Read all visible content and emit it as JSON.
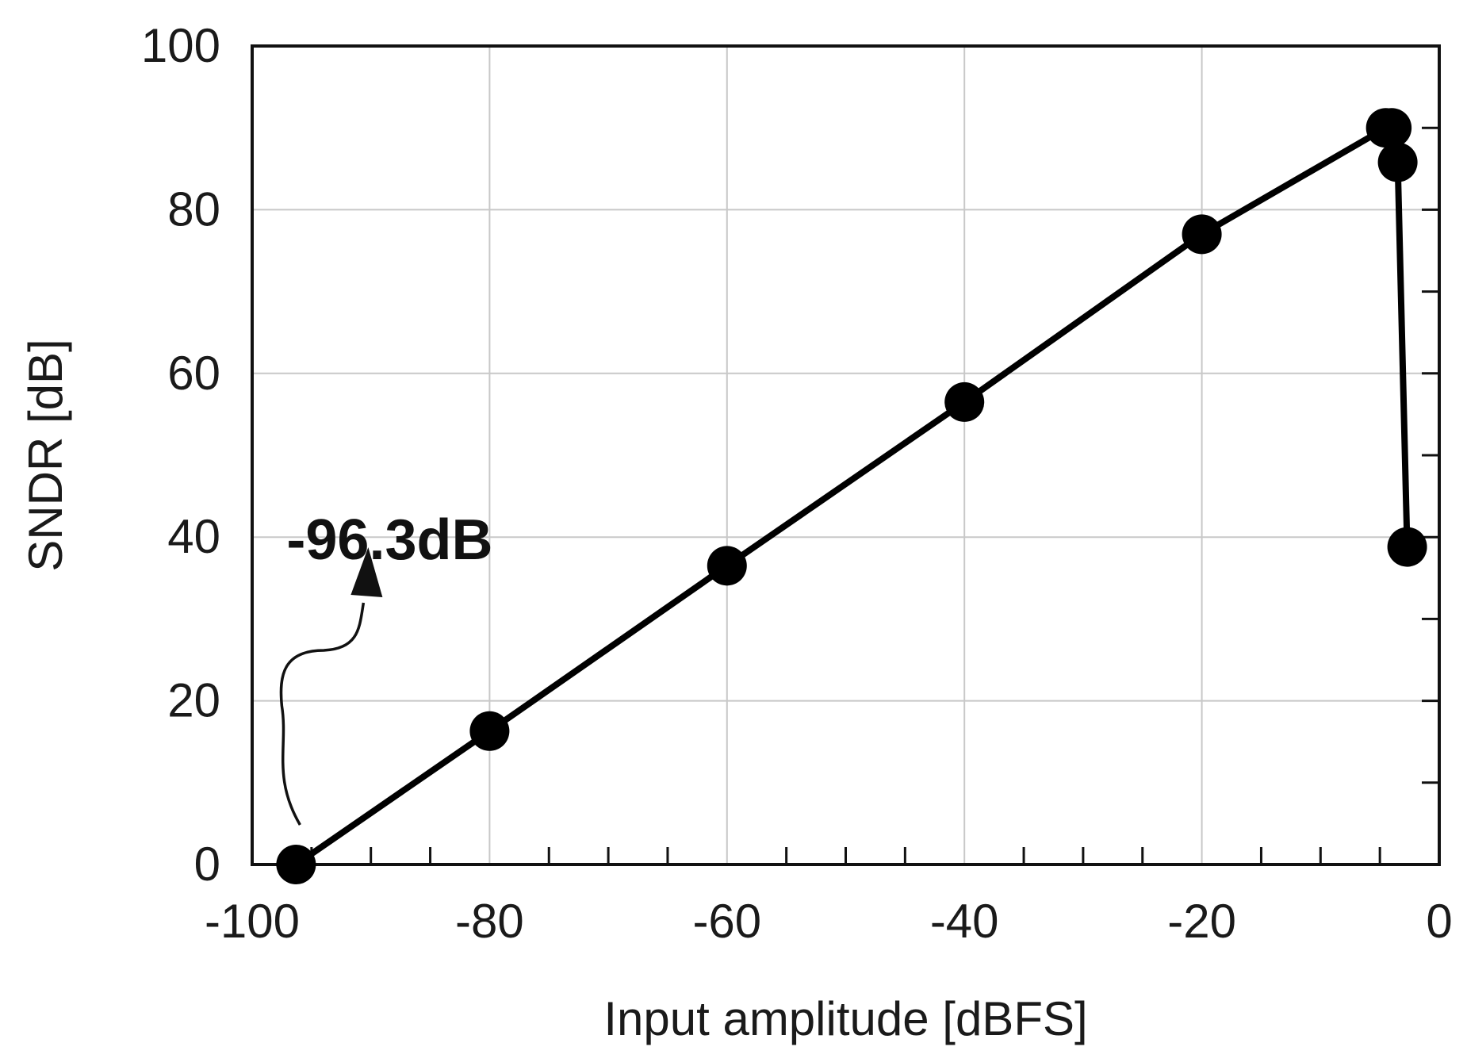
{
  "chart_data": {
    "type": "line",
    "title": "",
    "xlabel": "Input amplitude [dBFS]",
    "ylabel": "SNDR [dB]",
    "xlim": [
      -100,
      0
    ],
    "ylim": [
      0,
      100
    ],
    "xticks": [
      -100,
      -80,
      -60,
      -40,
      -20,
      0
    ],
    "xtick_labels": [
      "-100",
      "-80",
      "-60",
      "-40",
      "-20",
      "0"
    ],
    "yticks": [
      0,
      20,
      40,
      60,
      80,
      100
    ],
    "ytick_labels": [
      "0",
      "20",
      "40",
      "60",
      "80",
      "100"
    ],
    "grid": true,
    "series": [
      {
        "color": "#000000",
        "marker": "circle",
        "points": [
          {
            "x": -96.3,
            "y": 0.0
          },
          {
            "x": -80,
            "y": 16.3
          },
          {
            "x": -60,
            "y": 36.5
          },
          {
            "x": -40,
            "y": 56.5
          },
          {
            "x": -20,
            "y": 77.0
          },
          {
            "x": -4.5,
            "y": 90.0
          },
          {
            "x": -4.0,
            "y": 90.0
          },
          {
            "x": -3.5,
            "y": 85.8
          },
          {
            "x": -2.7,
            "y": 38.8
          }
        ]
      }
    ],
    "annotation": {
      "text": "-96.3dB",
      "arrow": true,
      "target": {
        "x": -96.3,
        "y": 0
      }
    }
  }
}
